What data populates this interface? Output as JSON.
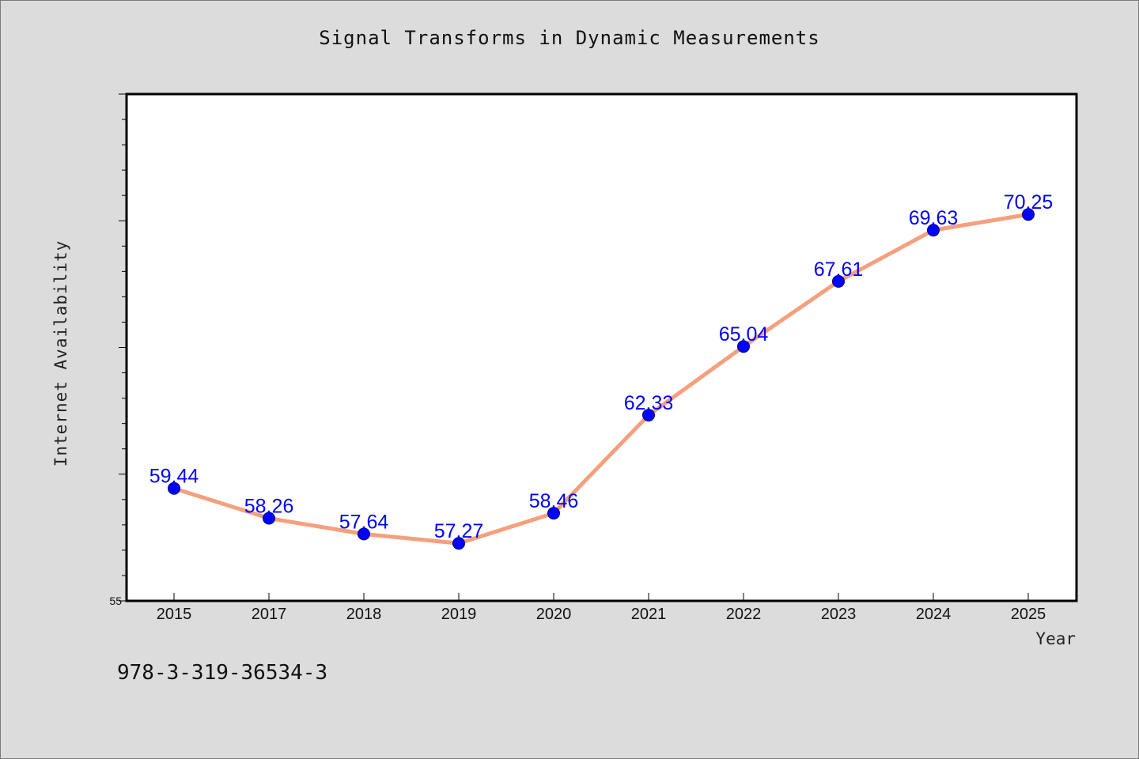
{
  "chart_data": {
    "type": "line",
    "title": "Signal Transforms in Dynamic Measurements",
    "xlabel": "Year",
    "ylabel": "Internet Availability",
    "categories": [
      "2015",
      "2017",
      "2018",
      "2019",
      "2020",
      "2021",
      "2022",
      "2023",
      "2024",
      "2025"
    ],
    "series": [
      {
        "values": [
          59.44,
          58.26,
          57.64,
          57.27,
          58.46,
          62.33,
          65.04,
          67.61,
          69.63,
          70.25
        ]
      }
    ],
    "ylim": [
      55,
      75
    ],
    "ytick_labels": [
      {
        "value": 55,
        "label": "55"
      }
    ],
    "grid": false,
    "legend": "none",
    "colors": {
      "line": "#f4a07e",
      "marker": "#0000ff",
      "marker_edge": "#000080",
      "data_label": "#0000ff",
      "background": "#dcdcdc",
      "plot_background": "#ffffff"
    }
  },
  "footer": {
    "isbn": "978-3-319-36534-3"
  }
}
